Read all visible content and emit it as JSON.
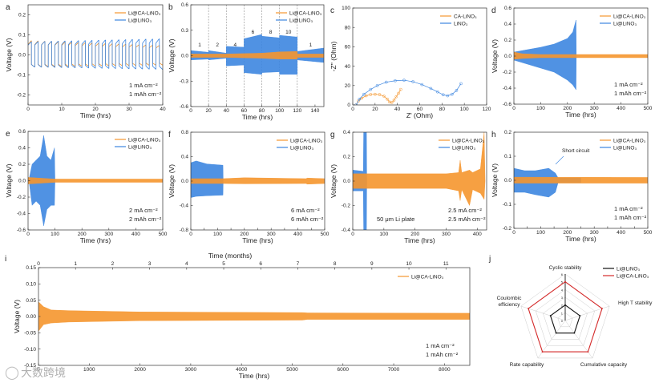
{
  "colors": {
    "ca": "#f5962e",
    "li": "#3d86e0",
    "radar_li": "#111111",
    "radar_ca": "#d42a2a",
    "axis": "#333333"
  },
  "watermark": "大数跨境",
  "chart_data": [
    {
      "id": "a",
      "type": "line",
      "panel_label": "a",
      "xlabel": "Time (hrs)",
      "ylabel": "Voltage (V)",
      "xlim": [
        0,
        40
      ],
      "ylim": [
        -0.25,
        0.25
      ],
      "xticks": [
        0,
        10,
        20,
        30,
        40
      ],
      "yticks": [
        -0.2,
        -0.1,
        0.0,
        0.1,
        0.2
      ],
      "series": [
        {
          "name": "Li@CA-LiNO3",
          "legend": "Li@CA-LiNO₃",
          "color": "ca",
          "shape": "square",
          "period": 2,
          "amp": [
            [
              0,
              0.07,
              -0.06
            ],
            [
              40,
              0.045,
              -0.05
            ]
          ]
        },
        {
          "name": "Li@LiNO3",
          "legend": "Li@LiNO₃",
          "color": "li",
          "shape": "square",
          "period": 2,
          "amp": [
            [
              0,
              0.065,
              -0.06
            ],
            [
              40,
              0.08,
              -0.072
            ]
          ]
        }
      ],
      "notes": [
        "1 mA cm⁻²",
        "1 mAh cm⁻²"
      ]
    },
    {
      "id": "b",
      "type": "line",
      "panel_label": "b",
      "xlabel": "Time (hrs)",
      "ylabel": "Voltage (V)",
      "xlim": [
        0,
        150
      ],
      "ylim": [
        -0.6,
        0.6
      ],
      "xticks": [
        0,
        20,
        40,
        60,
        80,
        100,
        120,
        140
      ],
      "yticks": [
        -0.6,
        -0.3,
        0.0,
        0.3,
        0.6
      ],
      "dividers": [
        20,
        40,
        60,
        80,
        100,
        120
      ],
      "segment_labels": [
        {
          "x": 10,
          "t": "1"
        },
        {
          "x": 30,
          "t": "2"
        },
        {
          "x": 50,
          "t": "4"
        },
        {
          "x": 70,
          "t": "6"
        },
        {
          "x": 90,
          "t": "8"
        },
        {
          "x": 110,
          "t": "10"
        },
        {
          "x": 135,
          "t": "1"
        }
      ],
      "series": [
        {
          "name": "Li@LiNO3",
          "legend": "Li@LiNO₃",
          "color": "li",
          "env": [
            [
              0,
              0.06,
              -0.05
            ],
            [
              20,
              0.04,
              -0.04
            ],
            [
              20,
              0.06,
              -0.05
            ],
            [
              40,
              0.03,
              -0.03
            ],
            [
              40,
              0.11,
              -0.12
            ],
            [
              60,
              0.1,
              -0.11
            ],
            [
              60,
              0.2,
              -0.2
            ],
            [
              80,
              0.25,
              -0.22
            ],
            [
              80,
              0.23,
              -0.2
            ],
            [
              100,
              0.21,
              -0.19
            ],
            [
              100,
              0.24,
              -0.22
            ],
            [
              120,
              0.22,
              -0.22
            ],
            [
              120,
              0.05,
              -0.05
            ],
            [
              150,
              0.09,
              -0.08
            ]
          ]
        },
        {
          "name": "Li@CA-LiNO3",
          "legend": "Li@CA-LiNO₃",
          "color": "ca",
          "env": [
            [
              0,
              0.02,
              -0.02
            ],
            [
              40,
              0.02,
              -0.02
            ],
            [
              60,
              0.025,
              -0.025
            ],
            [
              80,
              0.03,
              -0.03
            ],
            [
              100,
              0.045,
              -0.04
            ],
            [
              120,
              0.05,
              -0.04
            ],
            [
              120,
              0.02,
              -0.02
            ],
            [
              150,
              0.02,
              -0.02
            ]
          ]
        }
      ]
    },
    {
      "id": "c",
      "type": "scatter",
      "panel_label": "c",
      "xlabel": "Z' (Ohm)",
      "ylabel": "-Z'' (Ohm)",
      "xlim": [
        0,
        120
      ],
      "ylim": [
        0,
        100
      ],
      "xticks": [
        0,
        20,
        40,
        60,
        80,
        100,
        120
      ],
      "yticks": [
        0,
        20,
        40,
        60,
        80,
        100
      ],
      "series": [
        {
          "name": "CA-LiNO3",
          "legend": "CA-LiNO₃",
          "color": "ca",
          "points": [
            [
              3,
              0
            ],
            [
              5,
              4
            ],
            [
              8,
              7
            ],
            [
              12,
              9.5
            ],
            [
              16,
              10.8
            ],
            [
              20,
              11
            ],
            [
              24,
              10.7
            ],
            [
              28,
              9
            ],
            [
              31,
              6
            ],
            [
              33,
              3
            ],
            [
              35,
              2.5
            ],
            [
              37,
              5
            ],
            [
              39,
              8.5
            ],
            [
              41,
              12
            ],
            [
              43,
              16
            ]
          ]
        },
        {
          "name": "LiNO3",
          "legend": "LiNO₃",
          "color": "li",
          "points": [
            [
              3,
              0
            ],
            [
              6,
              6
            ],
            [
              10,
              11
            ],
            [
              16,
              16
            ],
            [
              22,
              20
            ],
            [
              30,
              23.5
            ],
            [
              38,
              25
            ],
            [
              46,
              25.5
            ],
            [
              54,
              24
            ],
            [
              62,
              21
            ],
            [
              70,
              17
            ],
            [
              76,
              13.5
            ],
            [
              81,
              10.5
            ],
            [
              85,
              9.5
            ],
            [
              89,
              11
            ],
            [
              93,
              15
            ],
            [
              97,
              22
            ]
          ]
        }
      ]
    },
    {
      "id": "d",
      "type": "line",
      "panel_label": "d",
      "xlabel": "Time (hrs)",
      "ylabel": "Voltage (V)",
      "xlim": [
        0,
        500
      ],
      "ylim": [
        -0.6,
        0.6
      ],
      "xticks": [
        0,
        100,
        200,
        300,
        400,
        500
      ],
      "yticks": [
        -0.6,
        -0.4,
        -0.2,
        0.0,
        0.2,
        0.4,
        0.6
      ],
      "series": [
        {
          "name": "Li@LiNO3",
          "legend": "Li@LiNO₃",
          "color": "li",
          "env": [
            [
              0,
              0.05,
              -0.05
            ],
            [
              50,
              0.08,
              -0.1
            ],
            [
              100,
              0.11,
              -0.15
            ],
            [
              150,
              0.15,
              -0.2
            ],
            [
              200,
              0.22,
              -0.3
            ],
            [
              220,
              0.3,
              -0.36
            ],
            [
              232,
              0.45,
              -0.42
            ],
            [
              233,
              0,
              0
            ]
          ]
        },
        {
          "name": "Li@CA-LiNO3",
          "legend": "Li@CA-LiNO₃",
          "color": "ca",
          "env": [
            [
              0,
              0.05,
              -0.04
            ],
            [
              30,
              0.03,
              -0.03
            ],
            [
              100,
              0.02,
              -0.02
            ],
            [
              500,
              0.02,
              -0.02
            ]
          ]
        }
      ],
      "notes": [
        "1 mA cm⁻²",
        "1 mAh cm⁻²"
      ]
    },
    {
      "id": "e",
      "type": "line",
      "panel_label": "e",
      "xlabel": "Time (hrs)",
      "ylabel": "Voltage (V)",
      "xlim": [
        0,
        500
      ],
      "ylim": [
        -0.6,
        0.6
      ],
      "xticks": [
        0,
        100,
        200,
        300,
        400,
        500
      ],
      "yticks": [
        -0.6,
        -0.4,
        -0.2,
        0.0,
        0.2,
        0.4,
        0.6
      ],
      "series": [
        {
          "name": "Li@LiNO3",
          "legend": "Li@LiNO₃",
          "color": "li",
          "env": [
            [
              5,
              0.04,
              -0.04
            ],
            [
              15,
              0.2,
              -0.3
            ],
            [
              30,
              0.25,
              -0.25
            ],
            [
              45,
              0.3,
              -0.3
            ],
            [
              58,
              0.55,
              -0.55
            ],
            [
              70,
              0.3,
              -0.35
            ],
            [
              85,
              0.25,
              -0.3
            ],
            [
              98,
              0.4,
              -0.3
            ],
            [
              100,
              0,
              0
            ]
          ]
        },
        {
          "name": "Li@CA-LiNO3",
          "legend": "Li@CA-LiNO₃",
          "color": "ca",
          "env": [
            [
              0,
              0.04,
              -0.04
            ],
            [
              100,
              0.02,
              -0.02
            ],
            [
              500,
              0.02,
              -0.02
            ]
          ]
        }
      ],
      "notes": [
        "2 mA cm⁻²",
        "2 mAh cm⁻²"
      ]
    },
    {
      "id": "f",
      "type": "line",
      "panel_label": "f",
      "xlabel": "Time (hrs)",
      "ylabel": "Voltage (V)",
      "xlim": [
        0,
        500
      ],
      "ylim": [
        -0.8,
        0.8
      ],
      "xticks": [
        0,
        50,
        100,
        150,
        200,
        250,
        300,
        350,
        400,
        450,
        500
      ],
      "xticklabels_every": 2,
      "yticks": [
        -0.8,
        -0.4,
        0.0,
        0.4,
        0.8
      ],
      "series": [
        {
          "name": "Li@LiNO3",
          "legend": "Li@LiNO₃",
          "color": "li",
          "env": [
            [
              0,
              0.3,
              -0.27
            ],
            [
              20,
              0.33,
              -0.25
            ],
            [
              60,
              0.28,
              -0.24
            ],
            [
              120,
              0.26,
              -0.23
            ],
            [
              121,
              0,
              0
            ]
          ]
        },
        {
          "name": "Li@CA-LiNO3",
          "legend": "Li@CA-LiNO₃",
          "color": "ca",
          "env": [
            [
              0,
              0.04,
              -0.04
            ],
            [
              120,
              0.04,
              -0.04
            ],
            [
              200,
              0.055,
              -0.045
            ],
            [
              430,
              0.04,
              -0.04
            ],
            [
              435,
              0.05,
              -0.05
            ],
            [
              500,
              0.04,
              -0.04
            ]
          ]
        }
      ],
      "notes": [
        "6 mA cm⁻²",
        "6 mAh cm⁻²"
      ]
    },
    {
      "id": "g",
      "type": "line",
      "panel_label": "g",
      "xlabel": "Time (hrs)",
      "ylabel": "Voltage (V)",
      "xlim": [
        0,
        430
      ],
      "ylim": [
        -0.4,
        0.4
      ],
      "xticks": [
        0,
        100,
        200,
        300,
        400
      ],
      "yticks": [
        -0.4,
        -0.2,
        0.0,
        0.2,
        0.4
      ],
      "series": [
        {
          "name": "Li@LiNO3",
          "legend": "Li@LiNO₃",
          "color": "li",
          "env": [
            [
              0,
              0.09,
              -0.08
            ],
            [
              34,
              0.08,
              -0.08
            ],
            [
              35,
              0.4,
              -0.4
            ],
            [
              44,
              0.4,
              -0.4
            ],
            [
              45,
              0,
              0
            ]
          ]
        },
        {
          "name": "Li@CA-LiNO3",
          "legend": "Li@CA-LiNO₃",
          "color": "ca",
          "env": [
            [
              0,
              0.06,
              -0.06
            ],
            [
              300,
              0.06,
              -0.06
            ],
            [
              340,
              0.07,
              -0.08
            ],
            [
              345,
              0.17,
              -0.16
            ],
            [
              350,
              0.07,
              -0.07
            ],
            [
              375,
              0.09,
              -0.2
            ],
            [
              385,
              0.07,
              -0.07
            ],
            [
              410,
              0.1,
              -0.1
            ],
            [
              422,
              0.4,
              -0.15
            ],
            [
              425,
              0,
              0
            ]
          ]
        }
      ],
      "notes": [
        "2.5 mA cm⁻²",
        "2.5 mAh cm⁻²"
      ],
      "extra_note": "50 μm Li plate"
    },
    {
      "id": "h",
      "type": "line",
      "panel_label": "h",
      "xlabel": "Time (hrs)",
      "ylabel": "Voltage (V)",
      "xlim": [
        0,
        500
      ],
      "ylim": [
        -0.2,
        0.2
      ],
      "xticks": [
        0,
        50,
        100,
        150,
        200,
        250,
        300,
        350,
        400,
        450,
        500
      ],
      "xticklabels_every": 2,
      "yticks": [
        -0.2,
        -0.1,
        0.0,
        0.1,
        0.2
      ],
      "series": [
        {
          "name": "Li@LiNO3",
          "legend": "Li@LiNO₃",
          "color": "li",
          "env": [
            [
              0,
              0.05,
              -0.05
            ],
            [
              40,
              0.04,
              -0.05
            ],
            [
              80,
              0.04,
              -0.06
            ],
            [
              130,
              0.05,
              -0.07
            ],
            [
              155,
              0.03,
              -0.05
            ],
            [
              165,
              0.01,
              -0.01
            ],
            [
              250,
              0.01,
              -0.01
            ]
          ]
        },
        {
          "name": "Li@CA-LiNO3",
          "legend": "Li@CA-LiNO₃",
          "color": "ca",
          "env": [
            [
              0,
              0.013,
              -0.012
            ],
            [
              500,
              0.012,
              -0.012
            ]
          ]
        }
      ],
      "annotation": "Short circuit",
      "notes": [
        "1 mA cm⁻²",
        "1 mAh cm⁻²"
      ]
    },
    {
      "id": "i",
      "type": "line",
      "panel_label": "i",
      "xlabel": "Time (hrs)",
      "x2label": "Time (months)",
      "ylabel": "Voltage (V)",
      "xlim": [
        0,
        8500
      ],
      "ylim": [
        -0.15,
        0.15
      ],
      "xticks": [
        0,
        1000,
        2000,
        3000,
        4000,
        5000,
        6000,
        7000,
        8000
      ],
      "x2ticks": [
        0,
        1,
        2,
        3,
        4,
        5,
        6,
        7,
        8,
        9,
        10,
        11
      ],
      "hours_per_month": 730,
      "yticks": [
        -0.15,
        -0.1,
        -0.05,
        0.0,
        0.05,
        0.1,
        0.15
      ],
      "series": [
        {
          "name": "Li@CA-LiNO3",
          "legend": "Li@CA-LiNO₃",
          "color": "ca",
          "env": [
            [
              0,
              0.045,
              -0.045
            ],
            [
              100,
              0.03,
              -0.025
            ],
            [
              250,
              0.02,
              -0.02
            ],
            [
              600,
              0.018,
              -0.017
            ],
            [
              2000,
              0.014,
              -0.013
            ],
            [
              5200,
              0.012,
              -0.011
            ],
            [
              5300,
              0.011,
              -0.009
            ],
            [
              8500,
              0.01,
              -0.009
            ]
          ]
        }
      ],
      "notes": [
        "1 mA cm⁻²",
        "1 mAh cm⁻²"
      ]
    },
    {
      "id": "j",
      "type": "radar",
      "panel_label": "j",
      "axes": [
        "Cyclic stability",
        "High T stability",
        "Cumulative capacity",
        "Rate capability",
        "Coulombic efficiency"
      ],
      "rlim": [
        0,
        6
      ],
      "rticks": [
        0,
        1,
        2,
        3,
        4,
        5,
        6
      ],
      "series": [
        {
          "name": "Li@LiNO3",
          "legend": "Li@LiNO₃",
          "color": "radar_li",
          "values": [
            2,
            2,
            2,
            2,
            2
          ]
        },
        {
          "name": "Li@CA-LiNO3",
          "legend": "Li@CA-LiNO₃",
          "color": "radar_ca",
          "values": [
            5,
            5,
            5,
            5,
            5
          ]
        }
      ]
    }
  ]
}
